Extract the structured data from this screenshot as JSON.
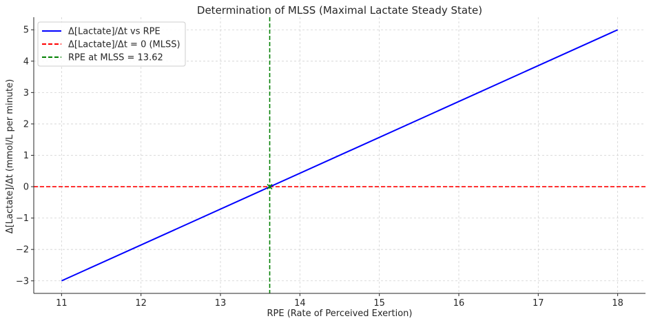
{
  "chart_data": {
    "type": "line",
    "title": "Determination of MLSS (Maximal Lactate Steady State)",
    "xlabel": "RPE (Rate of Perceived Exertion)",
    "ylabel": "Δ[Lactate]/Δt (mmol/L per minute)",
    "xlim": [
      10.65,
      18.35
    ],
    "ylim": [
      -3.4,
      5.4
    ],
    "xticks": [
      11,
      12,
      13,
      14,
      15,
      16,
      17,
      18
    ],
    "yticks": [
      -3,
      -2,
      -1,
      0,
      1,
      2,
      3,
      4,
      5
    ],
    "xtick_labels": [
      "11",
      "12",
      "13",
      "14",
      "15",
      "16",
      "17",
      "18"
    ],
    "ytick_labels": [
      "−3",
      "−2",
      "−1",
      "0",
      "1",
      "2",
      "3",
      "4",
      "5"
    ],
    "grid": true,
    "legend_position": "top-left",
    "series": [
      {
        "name": "Δ[Lactate]/Δt vs RPE",
        "style": "solid",
        "color": "#0000ff",
        "x": [
          11,
          18
        ],
        "y": [
          -3,
          5
        ]
      }
    ],
    "hlines": [
      {
        "name": "Δ[Lactate]/Δt = 0 (MLSS)",
        "y": 0,
        "style": "dashed",
        "color": "#ff0000"
      }
    ],
    "vlines": [
      {
        "name": "RPE at MLSS = 13.62",
        "x": 13.62,
        "style": "dashed",
        "color": "#008000"
      }
    ],
    "markers": [
      {
        "x": 13.62,
        "y": 0,
        "symbol": "x",
        "color": "#008000"
      }
    ]
  }
}
